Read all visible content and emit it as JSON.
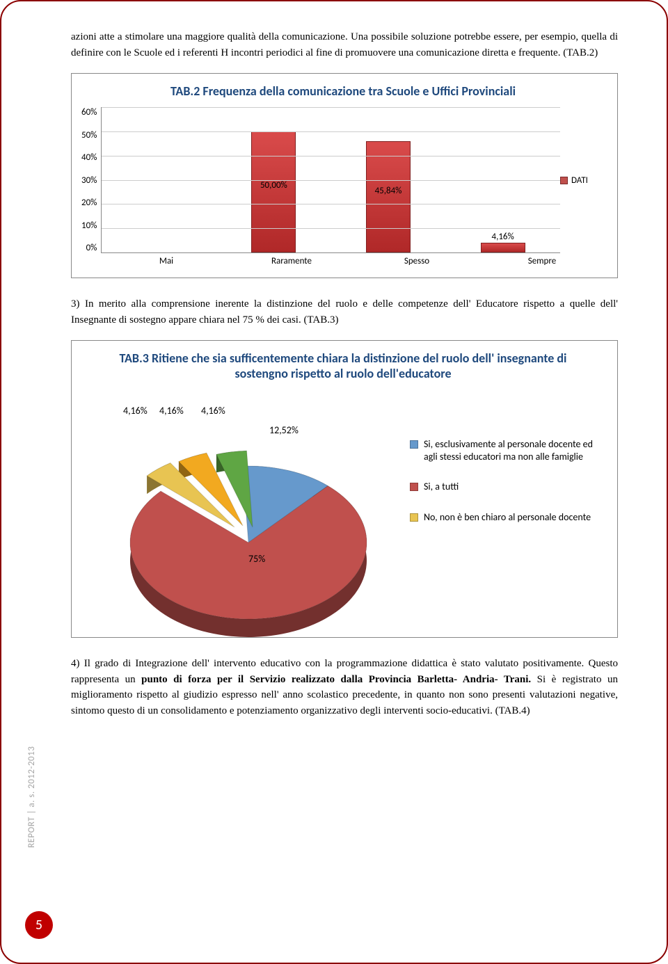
{
  "intro_paragraph": "azioni atte a stimolare una maggiore qualità della comunicazione. Una possibile soluzione potrebbe essere, per esempio,  quella di definire con le Scuole ed i referenti H incontri periodici al fine di promuovere una comunicazione diretta e frequente. (TAB.2)",
  "bar_chart": {
    "title": "TAB.2 Frequenza della comunicazione tra Scuole e Uffici Provinciali",
    "y_ticks": [
      "60%",
      "50%",
      "40%",
      "30%",
      "20%",
      "10%",
      "0%"
    ],
    "y_max": 60,
    "categories": [
      "Mai",
      "Raramente",
      "Spesso",
      "Sempre"
    ],
    "values": [
      0,
      50.0,
      45.84,
      4.16
    ],
    "value_labels": [
      "",
      "50,00%",
      "45,84%",
      "4,16%"
    ],
    "bar_color": "#c0504d",
    "grid_color": "#cccccc",
    "legend_label": "DATI"
  },
  "para3": "3) In merito alla comprensione inerente la distinzione del ruolo e delle competenze dell' Educatore rispetto a quelle dell' Insegnante di sostegno appare chiara nel 75 % dei casi. (TAB.3)",
  "pie_chart": {
    "title": "TAB.3 Ritiene che sia sufficentemente chiara la distinzione del ruolo dell' insegnante di sostengno rispetto al ruolo dell'educatore",
    "slices": [
      {
        "label": "12,52%",
        "value": 12.52,
        "color": "#6699cc"
      },
      {
        "label": "75%",
        "value": 75.0,
        "color": "#c0504d"
      },
      {
        "label": "4,16%",
        "value": 4.16,
        "color": "#e8c452"
      },
      {
        "label": "4,16%",
        "value": 4.16,
        "color": "#f2a920"
      },
      {
        "label": "4,16%",
        "value": 4.16,
        "color": "#5fa644"
      }
    ],
    "legend": [
      {
        "color": "#6699cc",
        "text": "Si, esclusivamente al personale docente ed agli stessi educatori ma non alle famiglie"
      },
      {
        "color": "#c0504d",
        "text": "Si, a tutti"
      },
      {
        "color": "#e8c452",
        "text": "No, non è ben chiaro al personale docente"
      }
    ]
  },
  "para4_plain1": "4) Il grado di Integrazione dell' intervento educativo con la programmazione didattica è stato valutato positivamente. Questo rappresenta un ",
  "para4_bold": "punto di forza per il Servizio realizzato dalla Provincia Barletta- Andria- Trani.",
  "para4_plain2": " Si è registrato un miglioramento rispetto al giudizio espresso nell' anno scolastico precedente, in quanto non sono presenti valutazioni negative, sintomo questo di un consolidamento e potenziamento organizzativo degli interventi socio-educativi. (TAB.4)",
  "sidebar": "REPORT | a. s. 2012-2013",
  "page_number": "5"
}
